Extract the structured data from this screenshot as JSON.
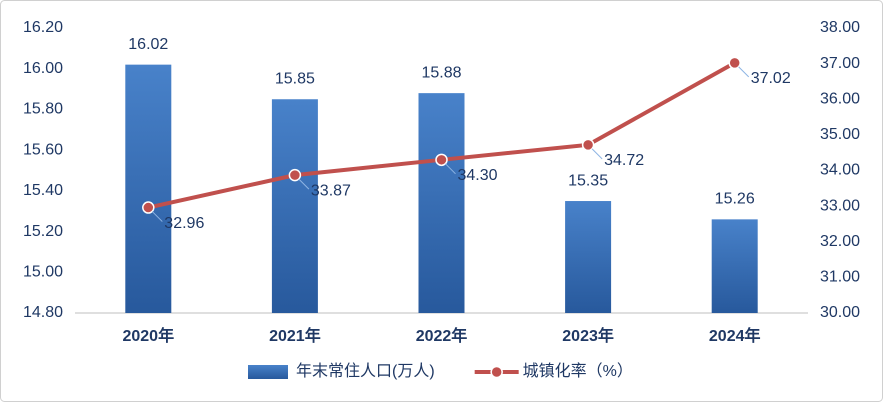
{
  "chart_data": {
    "type": "bar-line",
    "categories": [
      "2020年",
      "2021年",
      "2022年",
      "2023年",
      "2024年"
    ],
    "series": [
      {
        "name": "年末常住人口(万人)",
        "type": "bar",
        "color": "#3474c4",
        "values": [
          16.02,
          15.85,
          15.88,
          15.35,
          15.26
        ]
      },
      {
        "name": "城镇化率（%）",
        "type": "line",
        "axis": "y2",
        "color": "#c0504d",
        "values": [
          32.96,
          33.87,
          34.3,
          34.72,
          37.02
        ],
        "value_labels": [
          "32.96",
          "33.87",
          "34.30",
          "34.72",
          "37.02"
        ]
      }
    ],
    "ylim": [
      14.8,
      16.2
    ],
    "yticks": [
      {
        "value": 14.8,
        "label": "14.80"
      },
      {
        "value": 15,
        "label": "15.00"
      },
      {
        "value": 15.2,
        "label": "15.20"
      },
      {
        "value": 15.4,
        "label": "15.40"
      },
      {
        "value": 15.6,
        "label": "15.60"
      },
      {
        "value": 15.8,
        "label": "15.80"
      },
      {
        "value": 16,
        "label": "16.00"
      },
      {
        "value": 16.2,
        "label": "16.20"
      }
    ],
    "y2lim": [
      30,
      38
    ],
    "y2ticks": [
      {
        "value": 30,
        "label": "30.00"
      },
      {
        "value": 31,
        "label": "31.00"
      },
      {
        "value": 32,
        "label": "32.00"
      },
      {
        "value": 33,
        "label": "33.00"
      },
      {
        "value": 34,
        "label": "34.00"
      },
      {
        "value": 35,
        "label": "35.00"
      },
      {
        "value": 36,
        "label": "36.00"
      },
      {
        "value": 37,
        "label": "37.00"
      },
      {
        "value": 38,
        "label": "38.00"
      }
    ],
    "grid": false,
    "legend": "bottom"
  }
}
